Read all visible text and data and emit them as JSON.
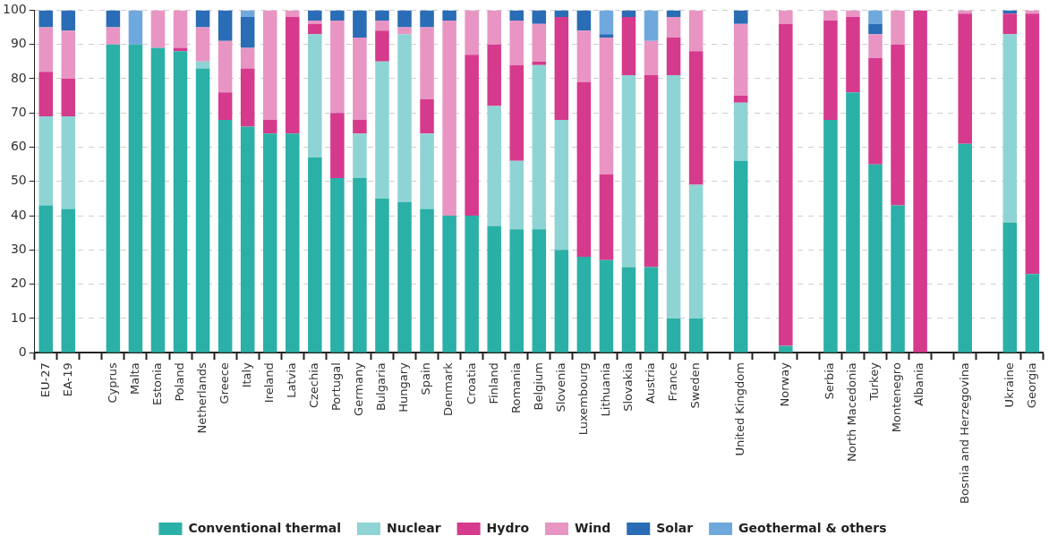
{
  "chart_data": {
    "type": "bar",
    "stacked": true,
    "categories": [
      "EU-27",
      "EA-19",
      null,
      "Cyprus",
      "Malta",
      "Estonia",
      "Poland",
      "Netherlands",
      "Greece",
      "Italy",
      "Ireland",
      "Latvia",
      "Czechia",
      "Portugal",
      "Germany",
      "Bulgaria",
      "Hungary",
      "Spain",
      "Denmark",
      "Croatia",
      "Finland",
      "Romania",
      "Belgium",
      "Slovenia",
      "Luxembourg",
      "Lithuania",
      "Slovakia",
      "Austria",
      "France",
      "Sweden",
      null,
      "United Kingdom",
      null,
      "Norway",
      null,
      "Serbia",
      "North Macedonia",
      "Turkey",
      "Montenegro",
      "Albania",
      null,
      "Bosnia and Herzegovina",
      null,
      "Ukraine",
      "Georgia"
    ],
    "series": [
      {
        "name": "Conventional thermal",
        "color": "#2bb0a7",
        "values": [
          43,
          42,
          null,
          90,
          90,
          89,
          88,
          83,
          68,
          66,
          64,
          64,
          57,
          51,
          51,
          45,
          44,
          42,
          40,
          40,
          37,
          36,
          36,
          30,
          28,
          27,
          25,
          25,
          10,
          10,
          null,
          56,
          null,
          2,
          null,
          68,
          76,
          55,
          43,
          0,
          null,
          61,
          null,
          38,
          23
        ]
      },
      {
        "name": "Nuclear",
        "color": "#8fd4d4",
        "values": [
          26,
          27,
          null,
          0,
          0,
          0,
          0,
          2,
          0,
          0,
          0,
          0,
          36,
          0,
          13,
          40,
          49,
          22,
          0,
          0,
          35,
          20,
          48,
          38,
          0,
          0,
          56,
          0,
          71,
          39,
          null,
          17,
          null,
          0,
          null,
          0,
          0,
          0,
          0,
          0,
          null,
          0,
          null,
          55,
          0
        ]
      },
      {
        "name": "Hydro",
        "color": "#d63a8c",
        "values": [
          13,
          11,
          null,
          0,
          0,
          0,
          1,
          0,
          8,
          17,
          4,
          34,
          3,
          19,
          4,
          9,
          0,
          10,
          0,
          47,
          18,
          28,
          1,
          30,
          51,
          25,
          17,
          56,
          11,
          39,
          null,
          2,
          null,
          94,
          null,
          29,
          22,
          31,
          47,
          100,
          null,
          38,
          null,
          6,
          76
        ]
      },
      {
        "name": "Wind",
        "color": "#e895c4",
        "values": [
          13,
          14,
          null,
          5,
          0,
          11,
          11,
          10,
          15,
          6,
          32,
          2,
          1,
          27,
          24,
          3,
          2,
          21,
          57,
          13,
          10,
          13,
          11,
          0,
          15,
          40,
          0,
          10,
          6,
          12,
          null,
          21,
          null,
          4,
          null,
          3,
          2,
          7,
          10,
          0,
          null,
          1,
          null,
          0,
          1
        ]
      },
      {
        "name": "Solar",
        "color": "#2a6cb5",
        "values": [
          5,
          6,
          null,
          5,
          0,
          0,
          0,
          5,
          9,
          9,
          0,
          0,
          3,
          3,
          8,
          3,
          5,
          5,
          3,
          0,
          0,
          3,
          4,
          2,
          6,
          1,
          2,
          0,
          2,
          0,
          null,
          4,
          null,
          0,
          null,
          0,
          0,
          3,
          0,
          0,
          null,
          0,
          null,
          1,
          0
        ]
      },
      {
        "name": "Geothermal & others",
        "color": "#6fa8dc",
        "values": [
          0,
          0,
          null,
          0,
          10,
          0,
          0,
          0,
          0,
          2,
          0,
          0,
          0,
          0,
          0,
          0,
          0,
          0,
          0,
          0,
          0,
          0,
          0,
          0,
          0,
          7,
          0,
          9,
          0,
          0,
          null,
          0,
          null,
          0,
          null,
          0,
          0,
          4,
          0,
          0,
          null,
          0,
          null,
          0,
          0
        ]
      }
    ],
    "ylim": [
      0,
      100
    ],
    "yticks": [
      0,
      10,
      20,
      30,
      40,
      50,
      60,
      70,
      80,
      90,
      100
    ],
    "grid": "y",
    "legend": "bottom"
  }
}
